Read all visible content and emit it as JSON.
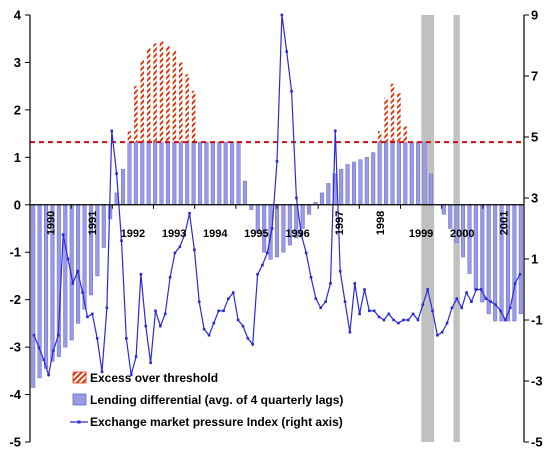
{
  "chart_data": {
    "type": "bar",
    "title": "",
    "xlabel": "",
    "ylabel": "",
    "ylim": [
      -5,
      4
    ],
    "y2lim": [
      -5,
      9
    ],
    "left_ticks": [
      "4",
      "3",
      "2",
      "1",
      "0",
      "-1",
      "-2",
      "-3",
      "-4",
      "-5"
    ],
    "right_ticks": [
      "9",
      "7",
      "5",
      "3",
      "1",
      "-1",
      "-3",
      "-5"
    ],
    "x_labels": [
      "1990",
      "1991",
      "1992",
      "1993",
      "1994",
      "1995",
      "1996",
      "1997",
      "1998",
      "1999",
      "2000",
      "2001"
    ],
    "threshold": 1.32,
    "threshold_color": "#c81010",
    "shaded_periods": [
      [
        61,
        63
      ],
      [
        66,
        67
      ]
    ],
    "shade_color": "#c0c0c0",
    "series": [
      {
        "name": "Lending differential (avg. of 4 quarterly lags)",
        "kind": "bar",
        "color": "#9a9ae6",
        "values": [
          -3.85,
          -3.65,
          -3.45,
          -3.3,
          -3.2,
          -3.0,
          -2.85,
          -2.5,
          -2.2,
          -1.9,
          -1.5,
          -0.9,
          -0.3,
          0.25,
          0.75,
          1.3,
          1.32,
          1.32,
          1.32,
          1.32,
          1.32,
          1.32,
          1.32,
          1.32,
          1.32,
          1.32,
          1.32,
          1.32,
          1.32,
          1.32,
          1.32,
          1.32,
          1.32,
          0.5,
          -0.1,
          -0.6,
          -1.0,
          -1.15,
          -1.1,
          -1.0,
          -0.85,
          -0.7,
          -0.5,
          -0.2,
          0.05,
          0.25,
          0.45,
          0.65,
          0.75,
          0.85,
          0.9,
          0.95,
          1.0,
          1.1,
          1.32,
          1.32,
          1.32,
          1.32,
          1.32,
          1.32,
          1.32,
          1.32,
          0.65,
          0.0,
          -0.2,
          -0.5,
          -0.8,
          -1.1,
          -1.45,
          -1.8,
          -2.05,
          -2.3,
          -2.45,
          -2.45,
          -2.45,
          -2.45,
          -2.3
        ]
      },
      {
        "name": "Excess over threshold",
        "kind": "bar",
        "color": "#d83a10",
        "values": [
          null,
          null,
          null,
          null,
          null,
          null,
          null,
          null,
          null,
          null,
          null,
          null,
          null,
          null,
          null,
          1.55,
          2.5,
          3.05,
          3.3,
          3.4,
          3.45,
          3.35,
          3.25,
          3.0,
          2.75,
          2.4,
          null,
          null,
          null,
          null,
          null,
          null,
          null,
          null,
          null,
          null,
          null,
          null,
          null,
          null,
          null,
          null,
          null,
          null,
          null,
          null,
          null,
          null,
          null,
          null,
          null,
          null,
          null,
          null,
          1.55,
          2.25,
          2.55,
          2.35,
          1.65,
          null,
          null,
          null,
          null,
          null,
          null,
          null,
          null,
          null,
          null,
          null,
          null,
          null,
          null,
          null,
          null,
          null,
          null
        ]
      },
      {
        "name": "Exchange market pressure Index (right axis)",
        "kind": "line",
        "axis": "right",
        "color": "#2a2ad8",
        "values": [
          -1.5,
          -1.9,
          -2.3,
          -2.8,
          -2.0,
          -1.5,
          1.8,
          1.0,
          0.2,
          0.6,
          -0.1,
          -0.9,
          -0.8,
          -1.6,
          -2.7,
          -0.6,
          5.2,
          3.8,
          1.6,
          -1.6,
          -2.8,
          -2.2,
          0.5,
          -1.2,
          -2.4,
          -0.7,
          -1.2,
          -0.8,
          0.4,
          1.2,
          1.4,
          1.8,
          2.5,
          1.3,
          -0.4,
          -1.3,
          -1.5,
          -1.1,
          -0.7,
          -0.7,
          -0.3,
          -0.1,
          -1.0,
          -1.2,
          -1.6,
          -1.8,
          0.5,
          0.8,
          1.2,
          2.0,
          4.2,
          9.0,
          7.8,
          6.5,
          3.0,
          1.8,
          1.2,
          0.4,
          -0.3,
          -0.6,
          -0.4,
          0.2,
          5.2,
          0.6,
          -0.4,
          -1.4,
          0.2,
          -0.8,
          0.0,
          -0.7,
          -0.7,
          -0.9,
          -1.0,
          -0.8,
          -1.0,
          -1.1,
          -1.0,
          -1.0,
          -0.8,
          -1.0,
          -0.5,
          0.0,
          -0.7,
          -1.5,
          -1.4,
          -1.1,
          -0.6,
          -0.3,
          -0.6,
          -0.1,
          -0.4,
          0.0,
          0.0,
          -0.3,
          -0.4,
          -0.5,
          -0.7,
          -1.0,
          -0.6,
          0.2,
          0.5
        ]
      }
    ],
    "legend": [
      {
        "label": "Excess over threshold",
        "color": "#d83a10",
        "shape": "hatched-box"
      },
      {
        "label": "Lending differential (avg. of 4 quarterly lags)",
        "color": "#9a9ae6",
        "shape": "box"
      },
      {
        "label": "Exchange market pressure Index (right axis)",
        "color": "#2a2ad8",
        "shape": "line-marker"
      }
    ]
  }
}
